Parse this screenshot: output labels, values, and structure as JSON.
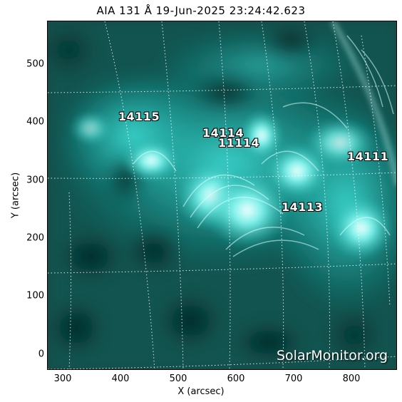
{
  "title": "AIA 131 Å 19-Jun-2025 23:24:42.623",
  "axes": {
    "xlabel": "X (arcsec)",
    "ylabel": "Y (arcsec)",
    "xticks": [
      "300",
      "400",
      "500",
      "600",
      "700",
      "800"
    ],
    "yticks": [
      "500",
      "400",
      "300",
      "200",
      "100",
      "0"
    ]
  },
  "regions": [
    {
      "id": "14115",
      "label": "14115"
    },
    {
      "id": "14114",
      "label": "14114"
    },
    {
      "id": "11114",
      "label": "11114"
    },
    {
      "id": "14111",
      "label": "14111"
    },
    {
      "id": "14113",
      "label": "14113"
    }
  ],
  "watermark": "SolarMonitor.org",
  "colors": {
    "background": "#0a3a38",
    "plasma": "#2fe6dc",
    "bright": "#e8ffff",
    "grid": "#ffffff"
  }
}
